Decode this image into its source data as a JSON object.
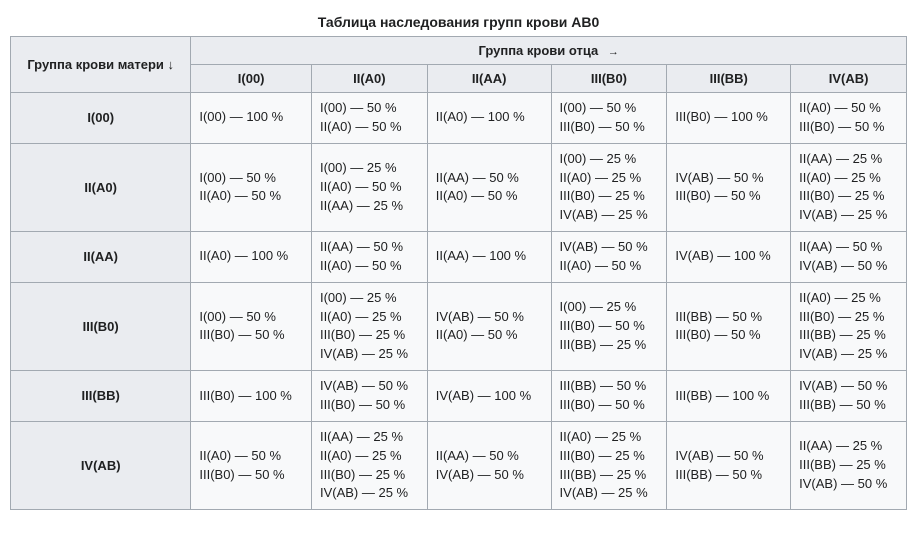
{
  "caption": "Таблица наследования групп крови AB0",
  "father_header": "Группа крови отца",
  "father_arrow": "→",
  "mother_header": "Группа крови матери ↓",
  "colors": {
    "background": "#ffffff",
    "table_bg": "#f8f9fa",
    "header_bg": "#eaecf0",
    "border": "#a2a9b1",
    "text": "#202122"
  },
  "father_columns": [
    "I(00)",
    "II(A0)",
    "II(AA)",
    "III(B0)",
    "III(BB)",
    "IV(AB)"
  ],
  "mother_rows": [
    "I(00)",
    "II(A0)",
    "II(AA)",
    "III(B0)",
    "III(BB)",
    "IV(AB)"
  ],
  "cells": [
    [
      [
        "I(00) — 100 %"
      ],
      [
        "I(00) — 50 %",
        "II(A0) — 50 %"
      ],
      [
        "II(A0) — 100 %"
      ],
      [
        "I(00) — 50 %",
        "III(B0) — 50 %"
      ],
      [
        "III(B0) — 100 %"
      ],
      [
        "II(A0) — 50 %",
        "III(B0) — 50 %"
      ]
    ],
    [
      [
        "I(00) — 50 %",
        "II(A0) — 50 %"
      ],
      [
        "I(00) — 25 %",
        "II(A0) — 50 %",
        "II(AA) — 25 %"
      ],
      [
        "II(AA) — 50 %",
        "II(A0) — 50 %"
      ],
      [
        "I(00) — 25 %",
        "II(A0) — 25 %",
        "III(B0) — 25 %",
        "IV(AB) — 25 %"
      ],
      [
        "IV(AB) — 50 %",
        "III(B0) — 50 %"
      ],
      [
        "II(AA) — 25 %",
        "II(A0) — 25 %",
        "III(B0) — 25 %",
        "IV(AB) — 25 %"
      ]
    ],
    [
      [
        "II(A0) — 100 %"
      ],
      [
        "II(AA) — 50 %",
        "II(A0) — 50 %"
      ],
      [
        "II(AA) — 100 %"
      ],
      [
        "IV(AB) — 50 %",
        "II(A0) — 50 %"
      ],
      [
        "IV(AB) — 100 %"
      ],
      [
        "II(AA) — 50 %",
        "IV(AB) — 50 %"
      ]
    ],
    [
      [
        "I(00) — 50 %",
        "III(B0) — 50 %"
      ],
      [
        "I(00) — 25 %",
        "II(A0) — 25 %",
        "III(B0) — 25 %",
        "IV(AB) — 25 %"
      ],
      [
        "IV(AB) — 50 %",
        "II(A0) — 50 %"
      ],
      [
        "I(00) — 25 %",
        "III(B0) — 50 %",
        "III(BB) — 25 %"
      ],
      [
        "III(BB) — 50 %",
        "III(B0) — 50 %"
      ],
      [
        "II(A0) — 25 %",
        "III(B0) — 25 %",
        "III(BB) — 25 %",
        "IV(AB) — 25 %"
      ]
    ],
    [
      [
        "III(B0) — 100 %"
      ],
      [
        "IV(AB) — 50 %",
        "III(B0) — 50 %"
      ],
      [
        "IV(AB) — 100 %"
      ],
      [
        "III(BB) — 50 %",
        "III(B0) — 50 %"
      ],
      [
        "III(BB) — 100 %"
      ],
      [
        "IV(AB) — 50 %",
        "III(BB) — 50 %"
      ]
    ],
    [
      [
        "II(A0) — 50 %",
        "III(B0) — 50 %"
      ],
      [
        "II(AA) — 25 %",
        "II(A0) — 25 %",
        "III(B0) — 25 %",
        "IV(AB) — 25 %"
      ],
      [
        "II(AA) — 50 %",
        "IV(AB) — 50 %"
      ],
      [
        "II(A0) — 25 %",
        "III(B0) — 25 %",
        "III(BB) — 25 %",
        "IV(AB) — 25 %"
      ],
      [
        "IV(AB) — 50 %",
        "III(BB) — 50 %"
      ],
      [
        "II(AA) — 25 %",
        "III(BB) — 25 %",
        "IV(AB) — 50 %"
      ]
    ]
  ]
}
